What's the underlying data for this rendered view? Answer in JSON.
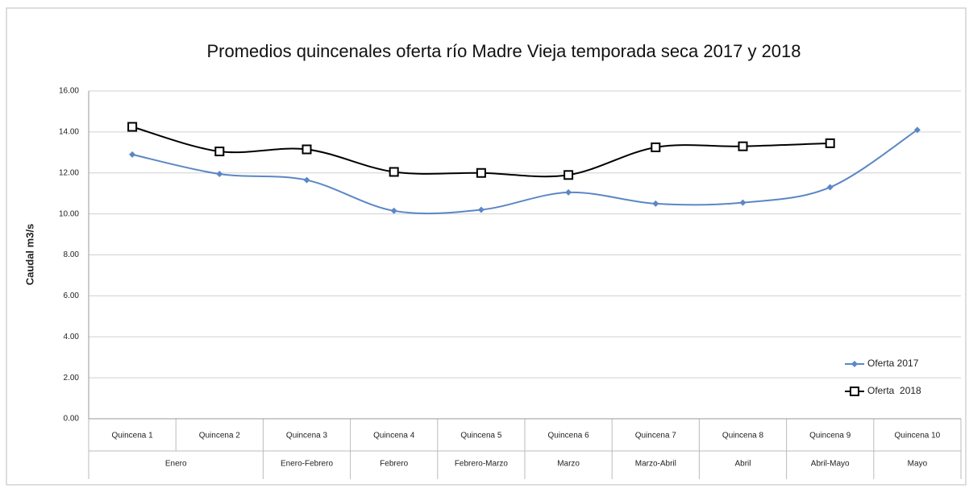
{
  "chart_data": {
    "type": "line",
    "title": "Promedios quincenales oferta río Madre Vieja temporada seca 2017 y 2018",
    "y_label": "Caudal m3/s",
    "groups": [
      {
        "label": "Enero",
        "categories": [
          "Quincena 1",
          "Quincena 2"
        ]
      },
      {
        "label": "Enero-Febrero",
        "categories": [
          "Quincena 3"
        ]
      },
      {
        "label": "Febrero",
        "categories": [
          "Quincena 4"
        ]
      },
      {
        "label": "Febrero-Marzo",
        "categories": [
          "Quincena 5"
        ]
      },
      {
        "label": "Marzo",
        "categories": [
          "Quincena 6"
        ]
      },
      {
        "label": "Marzo-Abril",
        "categories": [
          "Quincena 7"
        ]
      },
      {
        "label": "Abril",
        "categories": [
          "Quincena 8"
        ]
      },
      {
        "label": "Abril-Mayo",
        "categories": [
          "Quincena 9"
        ]
      },
      {
        "label": "Mayo",
        "categories": [
          "Quincena 10"
        ]
      }
    ],
    "series": [
      {
        "name": "Oferta 2017",
        "color": "#5b87c5",
        "marker": "diamond",
        "values": [
          12.9,
          11.95,
          11.65,
          10.15,
          10.2,
          11.05,
          10.5,
          10.55,
          11.3,
          14.1
        ]
      },
      {
        "name": "Oferta  2018",
        "color": "#000000",
        "marker": "square",
        "values": [
          14.25,
          13.05,
          13.15,
          12.05,
          12.0,
          11.9,
          13.25,
          13.3,
          13.45,
          null
        ]
      }
    ],
    "ylim": [
      0,
      16
    ],
    "yticks": [
      {
        "value": 0,
        "label": "0.00"
      },
      {
        "value": 2,
        "label": "2.00"
      },
      {
        "value": 4,
        "label": "4.00"
      },
      {
        "value": 6,
        "label": "6.00"
      },
      {
        "value": 8,
        "label": "8.00"
      },
      {
        "value": 10,
        "label": "10.00"
      },
      {
        "value": 12,
        "label": "12.00"
      },
      {
        "value": 14,
        "label": "14.00"
      },
      {
        "value": 16,
        "label": "16.00"
      }
    ],
    "grid": true,
    "smooth": true,
    "legend": "bottom-right"
  }
}
